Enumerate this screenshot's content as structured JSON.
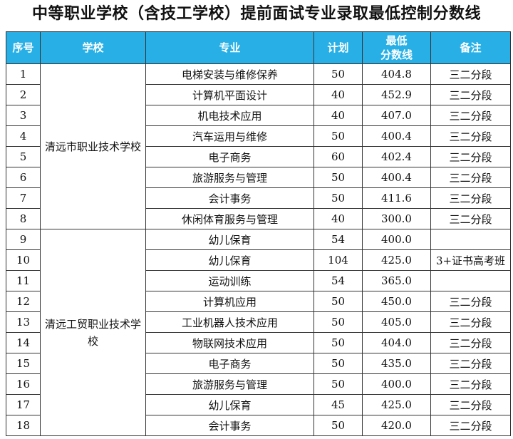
{
  "title": "中等职业学校（含技工学校）提前面试专业录取最低控制分数线",
  "headers": {
    "seq": "序号",
    "school": "学校",
    "major": "专业",
    "plan": "计划",
    "score_line1": "最低",
    "score_line2": "分数线",
    "note": "备注"
  },
  "schools": [
    {
      "name": "清远市职业技术学校",
      "rows": [
        {
          "seq": "1",
          "major": "电梯安装与维修保养",
          "plan": "50",
          "score": "404.8",
          "note": "三二分段"
        },
        {
          "seq": "2",
          "major": "计算机平面设计",
          "plan": "40",
          "score": "452.9",
          "note": "三二分段"
        },
        {
          "seq": "3",
          "major": "机电技术应用",
          "plan": "40",
          "score": "407.0",
          "note": "三二分段"
        },
        {
          "seq": "4",
          "major": "汽车运用与维修",
          "plan": "50",
          "score": "400.4",
          "note": "三二分段"
        },
        {
          "seq": "5",
          "major": "电子商务",
          "plan": "60",
          "score": "402.4",
          "note": "三二分段"
        },
        {
          "seq": "6",
          "major": "旅游服务与管理",
          "plan": "50",
          "score": "400.4",
          "note": "三二分段"
        },
        {
          "seq": "7",
          "major": "会计事务",
          "plan": "50",
          "score": "411.6",
          "note": "三二分段"
        },
        {
          "seq": "8",
          "major": "休闲体育服务与管理",
          "plan": "40",
          "score": "300.0",
          "note": "三二分段"
        }
      ]
    },
    {
      "name": "清远工贸职业技术学校",
      "rows": [
        {
          "seq": "9",
          "major": "幼儿保育",
          "plan": "54",
          "score": "400.0",
          "note": ""
        },
        {
          "seq": "10",
          "major": "幼儿保育",
          "plan": "104",
          "score": "425.0",
          "note": "3+证书高考班"
        },
        {
          "seq": "11",
          "major": "运动训练",
          "plan": "54",
          "score": "365.0",
          "note": ""
        },
        {
          "seq": "12",
          "major": "计算机应用",
          "plan": "50",
          "score": "450.0",
          "note": "三二分段"
        },
        {
          "seq": "13",
          "major": "工业机器人技术应用",
          "plan": "50",
          "score": "405.0",
          "note": "三二分段"
        },
        {
          "seq": "14",
          "major": "物联网技术应用",
          "plan": "50",
          "score": "404.0",
          "note": "三二分段"
        },
        {
          "seq": "15",
          "major": "电子商务",
          "plan": "50",
          "score": "435.0",
          "note": "三二分段"
        },
        {
          "seq": "16",
          "major": "旅游服务与管理",
          "plan": "50",
          "score": "400.0",
          "note": "三二分段"
        },
        {
          "seq": "17",
          "major": "幼儿保育",
          "plan": "45",
          "score": "425.0",
          "note": "三二分段"
        },
        {
          "seq": "18",
          "major": "会计事务",
          "plan": "50",
          "score": "420.0",
          "note": "三二分段"
        }
      ]
    }
  ]
}
